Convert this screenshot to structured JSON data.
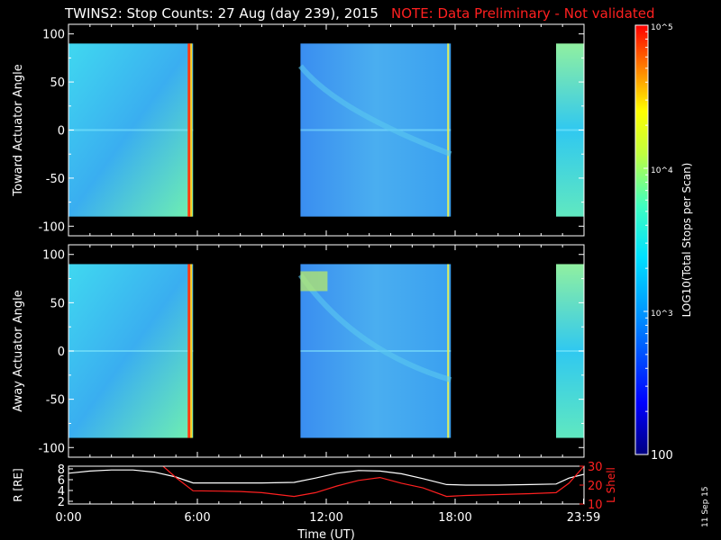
{
  "header": {
    "title": "TWINS2: Stop Counts: 27 Aug (day 239), 2015",
    "note": "NOTE: Data Preliminary - Not validated",
    "note_color": "#ff2020"
  },
  "footer": {
    "stamp": "11 Sep 15"
  },
  "chart_data": [
    {
      "type": "heatmap",
      "title": "Toward Actuator Angle",
      "ylabel": "Toward Actuator Angle",
      "xlabel": "",
      "ylim": [
        -110,
        110
      ],
      "yticks": [
        "100",
        "50",
        "0",
        "-50",
        "-100"
      ],
      "x_unit": "hours UT",
      "data_intervals_hours": [
        [
          0,
          5.8
        ],
        [
          10.8,
          17.8
        ],
        [
          22.7,
          24
        ]
      ],
      "angle_range": [
        -90,
        90
      ],
      "colorscale": "log10 counts, 100 to 1e5"
    },
    {
      "type": "heatmap",
      "title": "Away Actuator Angle",
      "ylabel": "Away Actuator Angle",
      "xlabel": "",
      "ylim": [
        -110,
        110
      ],
      "yticks": [
        "100",
        "50",
        "0",
        "-50",
        "-100"
      ],
      "x_unit": "hours UT",
      "data_intervals_hours": [
        [
          0,
          5.8
        ],
        [
          10.8,
          17.8
        ],
        [
          22.7,
          24
        ]
      ],
      "angle_range": [
        -90,
        90
      ],
      "colorscale": "log10 counts, 100 to 1e5"
    },
    {
      "type": "line",
      "xlabel": "Time (UT)",
      "xticks": [
        "0:00",
        "6:00",
        "12:00",
        "18:00",
        "23:59"
      ],
      "xtick_hours": [
        0,
        6,
        12,
        18,
        23.98
      ],
      "y_left": {
        "label": "R [RE]",
        "ticks": [
          "8",
          "6",
          "4",
          "2"
        ],
        "range": [
          1.5,
          8.5
        ]
      },
      "y_right": {
        "label": "L Shell",
        "ticks": [
          "30",
          "20",
          "10"
        ],
        "range": [
          10,
          30
        ]
      },
      "series": [
        {
          "color": "#ffffff",
          "axis": "left",
          "x": [
            0,
            1,
            2,
            3,
            4,
            5,
            5.8,
            7,
            8,
            9,
            10.5,
            11.5,
            12.5,
            13.5,
            14.5,
            15.5,
            16.5,
            17.6,
            18.5,
            20,
            21.5,
            22.7,
            23.3,
            24
          ],
          "y": [
            7.2,
            7.6,
            7.8,
            7.8,
            7.4,
            6.5,
            5.4,
            5.4,
            5.4,
            5.4,
            5.5,
            6.3,
            7.2,
            7.7,
            7.6,
            7.1,
            6.2,
            5.1,
            5.0,
            5.0,
            5.1,
            5.2,
            6.3,
            7.0
          ]
        },
        {
          "color": "#ff2020",
          "axis": "right",
          "x": [
            4.3,
            5.0,
            5.8,
            7,
            8,
            9,
            10.5,
            11.5,
            12.5,
            13.5,
            14.5,
            15.5,
            16.5,
            17.6,
            18.5,
            20,
            21.5,
            22.7,
            23.3,
            24
          ],
          "y": [
            31,
            24,
            17,
            16.8,
            16.6,
            16,
            14,
            16,
            19.5,
            22.5,
            24,
            21,
            18.5,
            14,
            14.5,
            15,
            15.5,
            16,
            21,
            30
          ]
        }
      ]
    },
    {
      "type": "heatmap",
      "title": "colorbar",
      "ylabel": "LOG10(Total Stops per Scan)",
      "tick_labels": [
        "10^5",
        "10^4",
        "10^3",
        "100"
      ],
      "tick_values": [
        100000,
        10000,
        1000,
        100
      ],
      "range": [
        100,
        100000
      ],
      "log": true
    }
  ]
}
